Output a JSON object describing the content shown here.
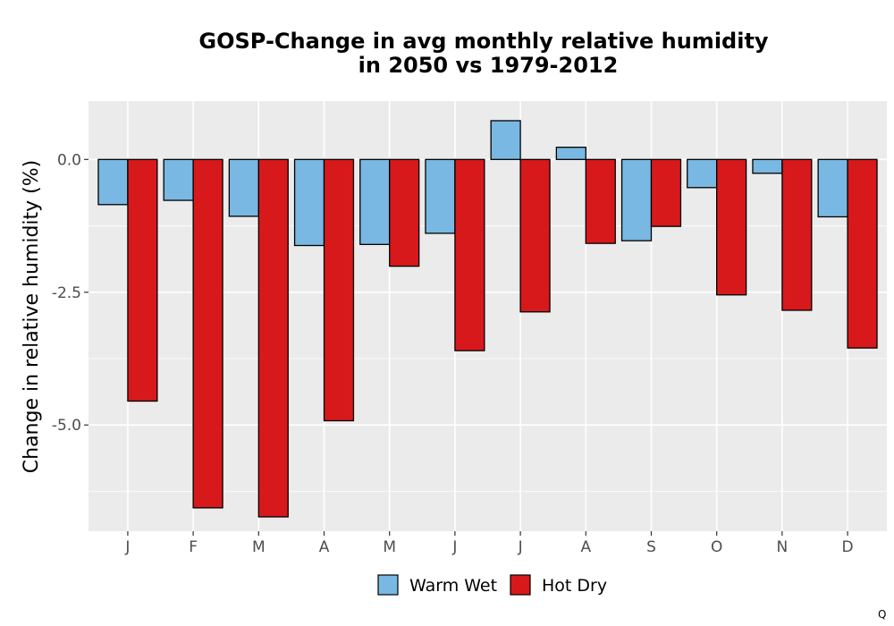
{
  "chart_data": {
    "type": "bar",
    "title": [
      "GOSP-Change in avg monthly relative humidity",
      "in 2050 vs 1979-2012"
    ],
    "xlabel": "",
    "ylabel": "Change in relative humidity (%)",
    "categories": [
      "J",
      "F",
      "M",
      "A",
      "M",
      "J",
      "J",
      "A",
      "S",
      "O",
      "N",
      "D"
    ],
    "series": [
      {
        "name": "Warm Wet",
        "color": "#79b8e2",
        "values": [
          -0.85,
          -0.77,
          -1.07,
          -1.62,
          -1.6,
          -1.39,
          0.73,
          0.23,
          -1.53,
          -0.53,
          -0.26,
          -1.08
        ]
      },
      {
        "name": "Hot Dry",
        "color": "#d7191c",
        "values": [
          -4.55,
          -6.56,
          -6.73,
          -4.92,
          -2.01,
          -3.6,
          -2.87,
          -1.58,
          -1.26,
          -2.55,
          -2.84,
          -3.55
        ]
      }
    ],
    "ylim": [
      -7.0,
      1.1
    ],
    "yticks": [
      0.0,
      -2.5,
      -5.0
    ],
    "ytick_labels": [
      "0.0",
      "-2.5",
      "-5.0"
    ],
    "grid": true,
    "legend_position": "bottom"
  },
  "corner_mark": "Q"
}
